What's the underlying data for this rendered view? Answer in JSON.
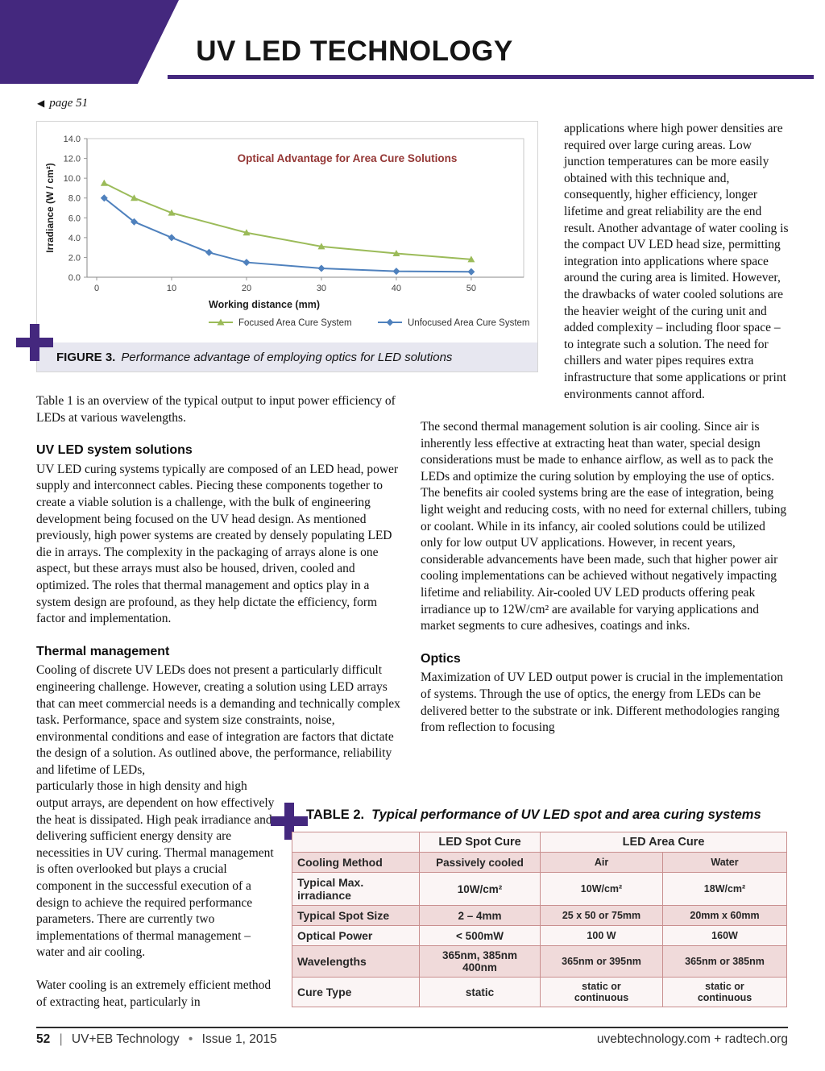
{
  "colors": {
    "brand_purple": "#44287e",
    "chart_green": "#9bbb59",
    "chart_blue": "#4f81bd",
    "chart_title_maroon": "#943634",
    "figure_caption_bar": "#e7e7f0",
    "table_pink": "#f0dada",
    "table_border": "#c98f8f"
  },
  "header": {
    "title": "UV LED TECHNOLOGY"
  },
  "page_ref": {
    "icon": "◀",
    "text": "page 51"
  },
  "figure3": {
    "label": "FIGURE 3.",
    "caption": "Performance advantage of employing optics for LED solutions"
  },
  "chart_data": {
    "type": "line",
    "title": "Optical Advantage for Area Cure Solutions",
    "title_color": "#943634",
    "xlabel": "Working distance (mm)",
    "ylabel": "Irradiance (W / cm²)",
    "xlim": [
      0,
      57
    ],
    "ylim": [
      0,
      14
    ],
    "x_ticks": [
      0,
      10,
      20,
      30,
      40,
      50
    ],
    "y_ticks": [
      0,
      2,
      4,
      6,
      8,
      10,
      12,
      14
    ],
    "grid": false,
    "legend_position": "bottom",
    "series": [
      {
        "name": "Focused Area Cure System",
        "color": "#9bbb59",
        "marker": "triangle",
        "x": [
          1,
          5,
          10,
          20,
          30,
          40,
          50
        ],
        "y": [
          9.5,
          8.0,
          6.5,
          4.5,
          3.1,
          2.4,
          1.8
        ]
      },
      {
        "name": "Unfocused Area Cure System",
        "color": "#4f81bd",
        "marker": "diamond",
        "x": [
          1,
          5,
          10,
          15,
          20,
          30,
          40,
          50
        ],
        "y": [
          8.0,
          5.6,
          4.0,
          2.5,
          1.5,
          0.9,
          0.6,
          0.55
        ]
      }
    ]
  },
  "article": {
    "left": {
      "intro": "Table 1 is an overview of the typical output to input power efficiency of LEDs at various wavelengths.",
      "s1_heading": "UV LED system solutions",
      "s1_body": "UV LED curing systems typically are composed of an LED head, power supply and interconnect cables. Piecing these components together to create a viable solution is a challenge, with the bulk of engineering development being focused on the UV head design. As mentioned previously, high power systems are created by densely populating LED die in arrays. The complexity in the packaging of arrays alone is one aspect, but these arrays must also be housed, driven, cooled and optimized. The roles that thermal management and optics play in a system design are profound, as they help dictate the efficiency, form factor and implementation.",
      "s2_heading": "Thermal management",
      "s2_body_a": "Cooling of discrete UV LEDs does not present a particularly difficult engineering challenge. However, creating a solution using LED arrays that can meet commercial needs is a demanding and technically complex task. Performance, space and system size constraints, noise, environmental conditions and ease of integration are factors that dictate the design of a solution. As outlined above, the performance, reliability and lifetime of LEDs,",
      "s2_body_b": "particularly those in high density and high output arrays, are dependent on how effectively the heat is dissipated. High peak irradiance and delivering sufficient energy density are necessities in UV curing. Thermal management is often overlooked but plays a crucial component in the successful execution of a design to achieve the required performance parameters. There are currently two implementations of thermal management – water and air cooling.",
      "s2_body_c": "Water cooling is an extremely efficient method of extracting heat, particularly in"
    },
    "right": {
      "p1": "applications where high power densities are required over large curing areas. Low junction temperatures can be more easily obtained with this technique and, consequently, higher efficiency, longer lifetime and great reliability are the end result. Another advantage of water cooling is the compact UV LED head size, permitting integration into applications where space around the curing area is limited. However, the drawbacks of water cooled solutions are the heavier weight of the curing unit and added complexity – including floor space – to integrate such a solution. The need for chillers and water pipes requires extra infrastructure that some applications or print environments cannot afford.",
      "p2": "The second thermal management solution is air cooling. Since air is inherently less effective at extracting heat than water, special design considerations must be made to enhance airflow, as well as to pack the LEDs and optimize the curing solution by employing the use of optics. The benefits air cooled systems bring are the ease of integration, being light weight and reducing costs, with no need for external chillers, tubing or coolant. While in its infancy, air cooled solutions could be utilized only for low output UV applications. However, in recent years, considerable advancements have been made, such that higher power air cooling implementations can be achieved without negatively impacting lifetime and reliability. Air-cooled UV LED products offering peak irradiance up to 12W/cm² are available for varying applications and market segments to cure adhesives, coatings and inks.",
      "optics_heading": "Optics",
      "optics_body": "Maximization of UV LED output power is crucial in the implementation of systems. Through the use of optics, the energy from LEDs can be delivered better to the substrate or ink. Different methodologies ranging from reflection to focusing"
    }
  },
  "table2": {
    "label": "TABLE 2.",
    "caption": "Typical performance of UV LED spot and area curing systems",
    "header": {
      "spot": "LED Spot Cure",
      "area": "LED Area Cure"
    },
    "rows": [
      {
        "label": "Cooling Method",
        "spot": "Passively cooled",
        "air": "Air",
        "water": "Water"
      },
      {
        "label": "Typical Max.\nirradiance",
        "spot": "10W/cm²",
        "air": "10W/cm²",
        "water": "18W/cm²"
      },
      {
        "label": "Typical Spot Size",
        "spot": "2 – 4mm",
        "air": "25 x 50 or 75mm",
        "water": "20mm x 60mm"
      },
      {
        "label": "Optical Power",
        "spot": "< 500mW",
        "air": "100 W",
        "water": "160W"
      },
      {
        "label": "Wavelengths",
        "spot": "365nm, 385nm\n400nm",
        "air": "365nm or 395nm",
        "water": "365nm or 385nm"
      },
      {
        "label": "Cure Type",
        "spot": "static",
        "air": "static or\ncontinuous",
        "water": "static or\ncontinuous"
      }
    ]
  },
  "footer": {
    "page_number": "52",
    "separator": "|",
    "journal": "UV+EB Technology",
    "bullet": "•",
    "issue": "Issue 1, 2015",
    "right": "uvebtechnology.com  +  radtech.org"
  }
}
